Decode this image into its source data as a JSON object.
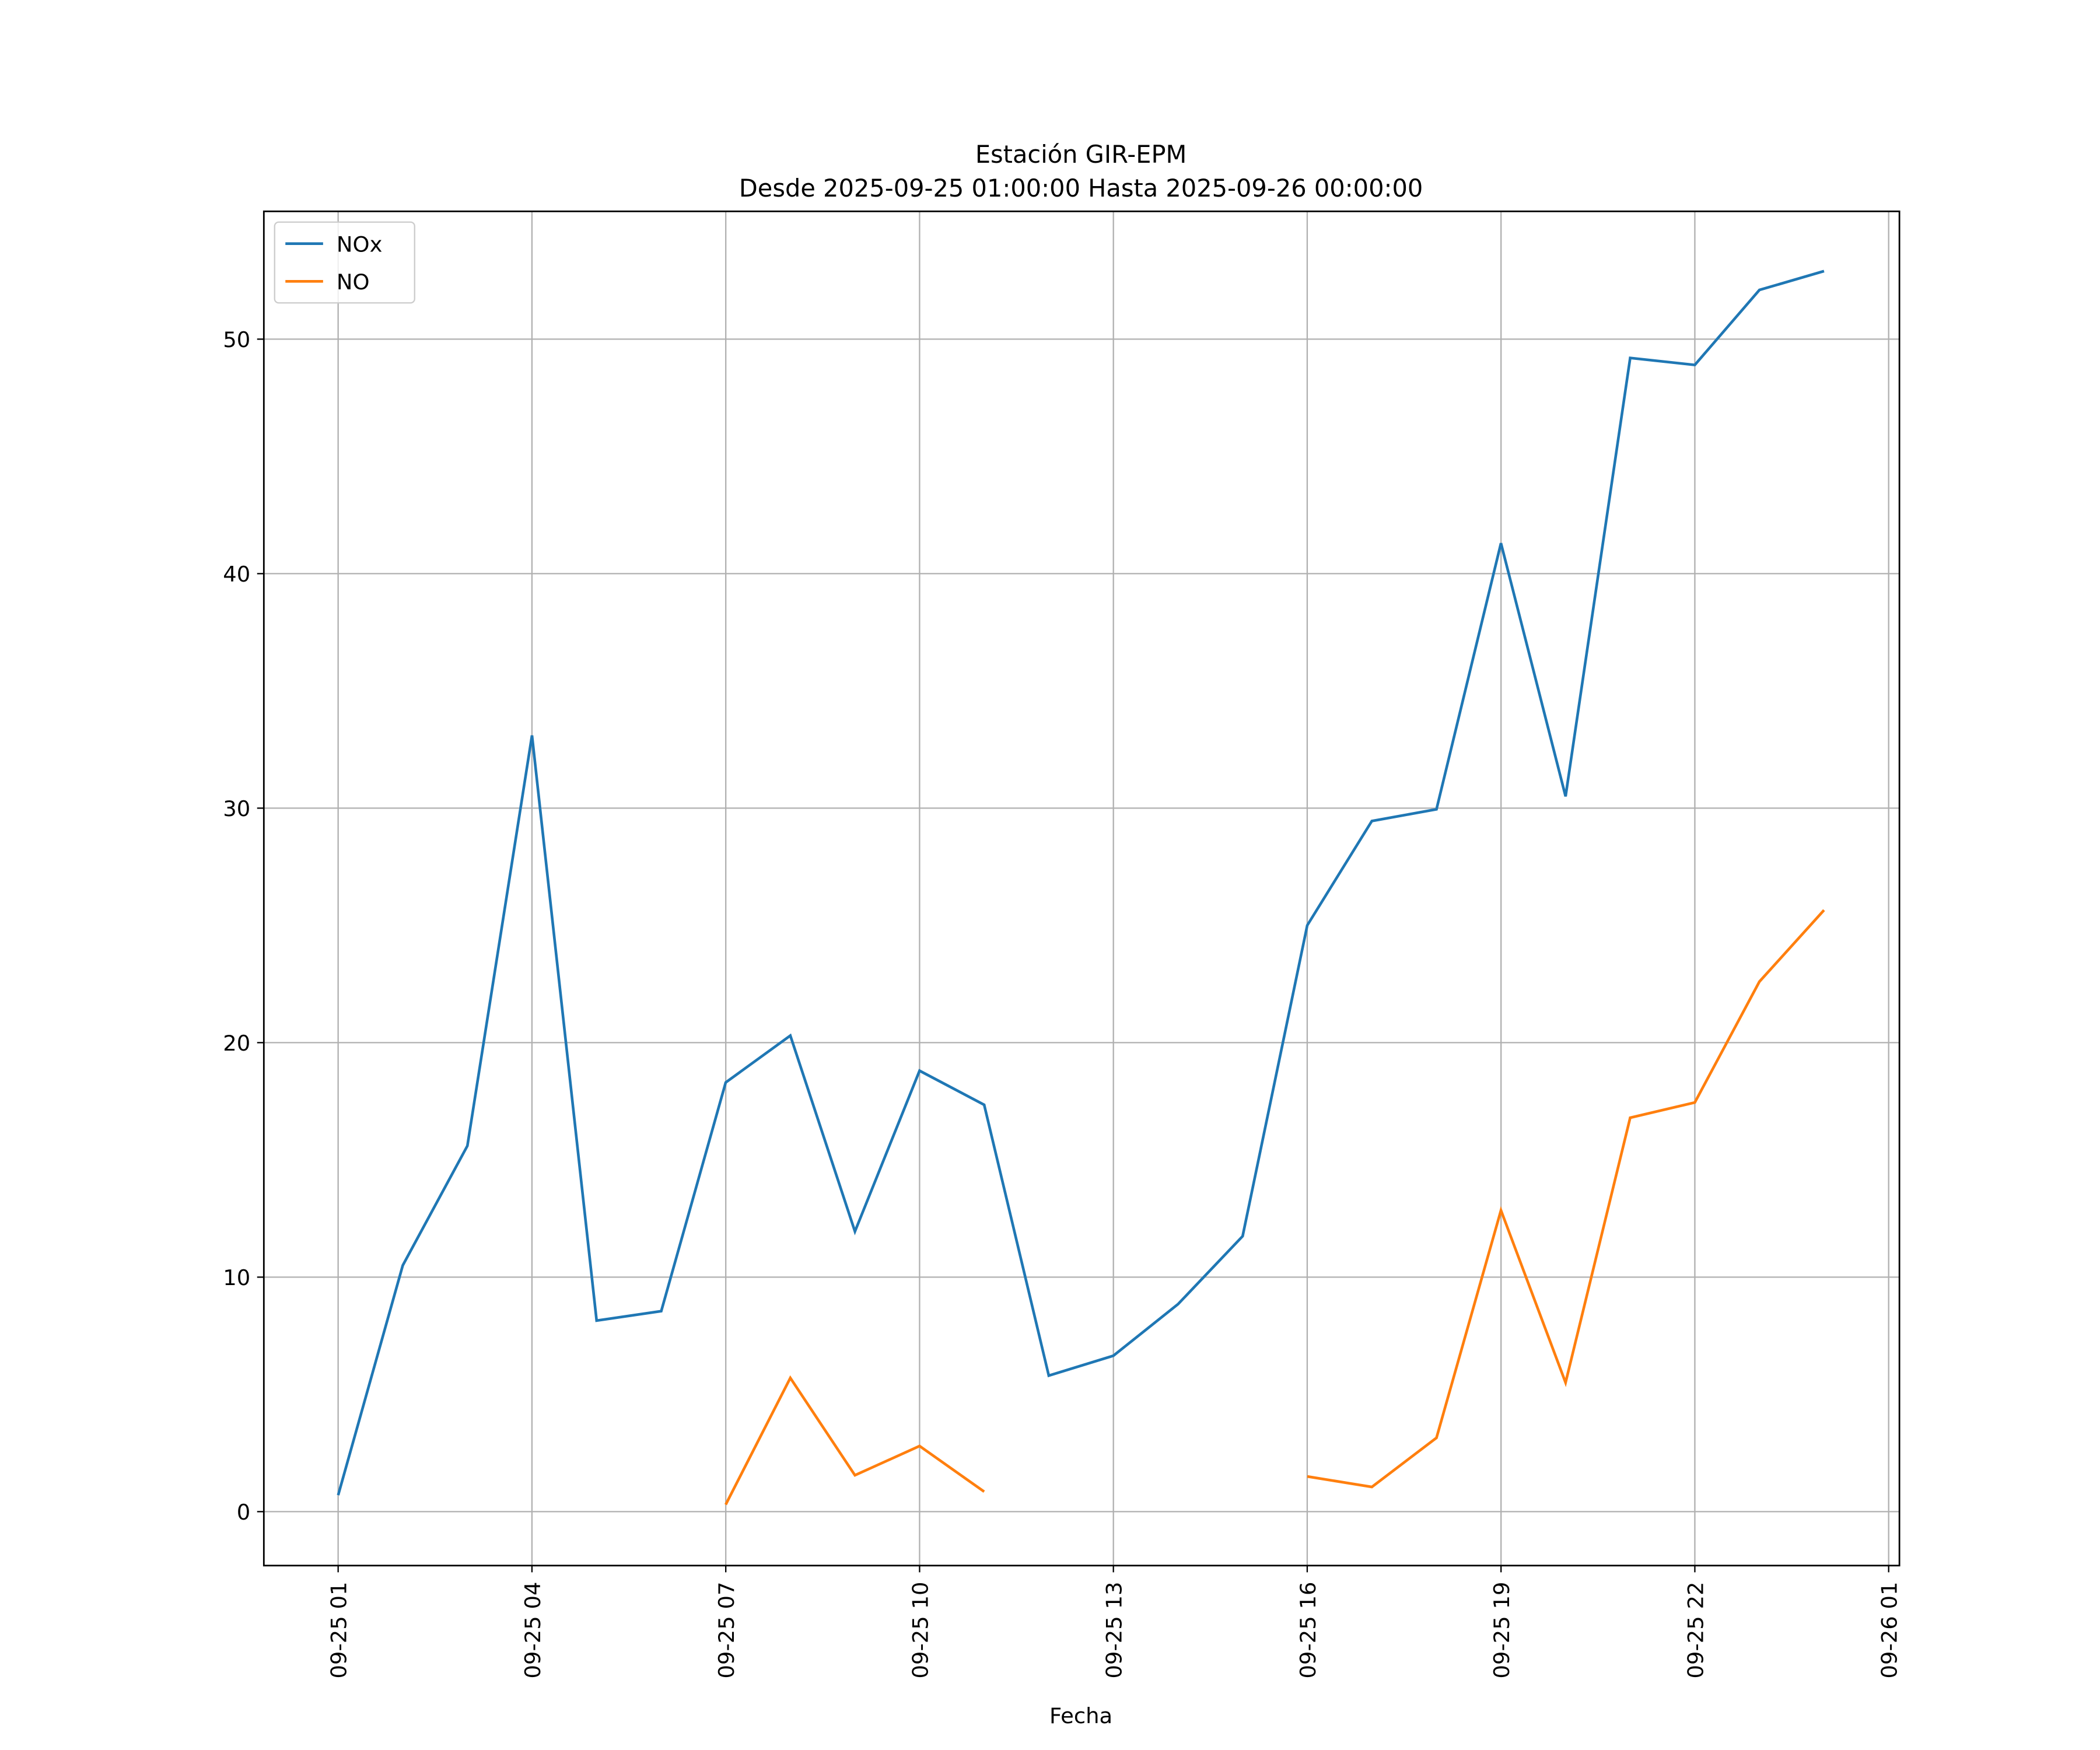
{
  "chart_data": {
    "type": "line",
    "title": "Estación GIR-EPM",
    "subtitle": "Desde 2025-09-25 01:00:00 Hasta 2025-09-26 00:00:00",
    "xlabel": "Fecha",
    "ylabel": "",
    "grid": true,
    "legend_placement": "top-left",
    "xlim": [
      "2025-09-24 23:51",
      "2025-09-26 01:10"
    ],
    "ylim": [
      -2.3,
      55.45
    ],
    "yticks": [
      0,
      10,
      20,
      30,
      40,
      50
    ],
    "xticks": [
      {
        "t": "2025-09-25 01:00",
        "label": "09-25 01"
      },
      {
        "t": "2025-09-25 04:00",
        "label": "09-25 04"
      },
      {
        "t": "2025-09-25 07:00",
        "label": "09-25 07"
      },
      {
        "t": "2025-09-25 10:00",
        "label": "09-25 10"
      },
      {
        "t": "2025-09-25 13:00",
        "label": "09-25 13"
      },
      {
        "t": "2025-09-25 16:00",
        "label": "09-25 16"
      },
      {
        "t": "2025-09-25 19:00",
        "label": "09-25 19"
      },
      {
        "t": "2025-09-25 22:00",
        "label": "09-25 22"
      },
      {
        "t": "2025-09-26 01:00",
        "label": "09-26 01"
      }
    ],
    "x": [
      "2025-09-25 01:00",
      "2025-09-25 02:00",
      "2025-09-25 03:00",
      "2025-09-25 04:00",
      "2025-09-25 05:00",
      "2025-09-25 06:00",
      "2025-09-25 07:00",
      "2025-09-25 08:00",
      "2025-09-25 09:00",
      "2025-09-25 10:00",
      "2025-09-25 11:00",
      "2025-09-25 12:00",
      "2025-09-25 13:00",
      "2025-09-25 14:00",
      "2025-09-25 15:00",
      "2025-09-25 16:00",
      "2025-09-25 17:00",
      "2025-09-25 18:00",
      "2025-09-25 19:00",
      "2025-09-25 20:00",
      "2025-09-25 21:00",
      "2025-09-25 22:00",
      "2025-09-25 23:00",
      "2025-09-26 00:00"
    ],
    "series": [
      {
        "name": "NOx",
        "color": "#1f77b4",
        "values": [
          0.7,
          10.5,
          15.6,
          33.1,
          8.15,
          8.55,
          18.3,
          20.3,
          11.95,
          18.8,
          17.35,
          5.8,
          6.65,
          8.85,
          11.75,
          25.0,
          29.45,
          29.95,
          41.3,
          30.5,
          49.2,
          48.9,
          52.1,
          52.9
        ]
      },
      {
        "name": "NO",
        "color": "#ff7f0e",
        "values": [
          null,
          null,
          null,
          null,
          null,
          null,
          0.3,
          5.7,
          1.55,
          2.8,
          0.85,
          null,
          null,
          null,
          null,
          1.5,
          1.05,
          3.15,
          12.85,
          5.5,
          16.8,
          17.45,
          22.6,
          25.65
        ]
      }
    ]
  }
}
